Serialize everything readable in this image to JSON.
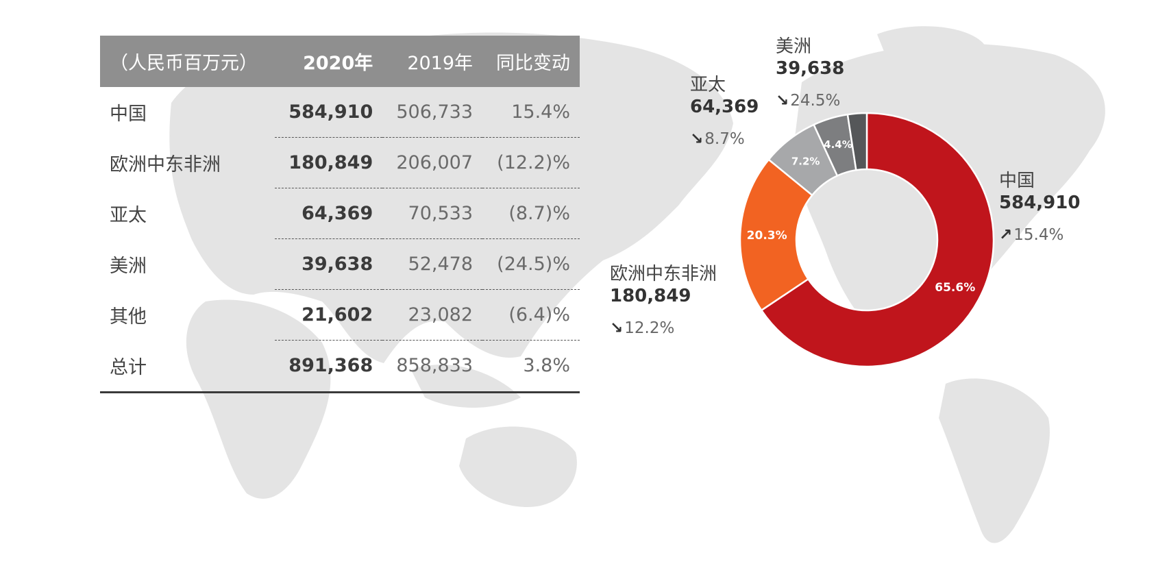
{
  "table": {
    "headers": [
      "（人民币百万元）",
      "2020年",
      "2019年",
      "同比变动"
    ],
    "rows": [
      {
        "region": "中国",
        "y2020": "584,910",
        "y2019": "506,733",
        "change": "15.4%"
      },
      {
        "region": "欧洲中东非洲",
        "y2020": "180,849",
        "y2019": "206,007",
        "change": "(12.2)%"
      },
      {
        "region": "亚太",
        "y2020": "64,369",
        "y2019": "70,533",
        "change": "(8.7)%"
      },
      {
        "region": "美洲",
        "y2020": "39,638",
        "y2019": "52,478",
        "change": "(24.5)%"
      },
      {
        "region": "其他",
        "y2020": "21,602",
        "y2019": "23,082",
        "change": "(6.4)%"
      },
      {
        "region": "总计",
        "y2020": "891,368",
        "y2019": "858,833",
        "change": "3.8%"
      }
    ]
  },
  "chart_data": {
    "type": "pie",
    "categories": [
      "中国",
      "欧洲中东非洲",
      "亚太",
      "美洲",
      "其他"
    ],
    "values": [
      584910,
      180849,
      64369,
      39638,
      21602
    ],
    "slice_labels": [
      "65.6%",
      "20.3%",
      "7.2%",
      "4.4%",
      ""
    ],
    "colors": [
      "#c0151c",
      "#f26322",
      "#a7a8aa",
      "#7d7e80",
      "#555759"
    ],
    "callouts": [
      {
        "name": "中国",
        "value": "584,910",
        "change": "15.4%",
        "direction": "up"
      },
      {
        "name": "欧洲中东非洲",
        "value": "180,849",
        "change": "12.2%",
        "direction": "down"
      },
      {
        "name": "亚太",
        "value": "64,369",
        "change": "8.7%",
        "direction": "down"
      },
      {
        "name": "美洲",
        "value": "39,638",
        "change": "24.5%",
        "direction": "down"
      }
    ],
    "arrows": {
      "up": "↗",
      "down": "↘"
    }
  }
}
